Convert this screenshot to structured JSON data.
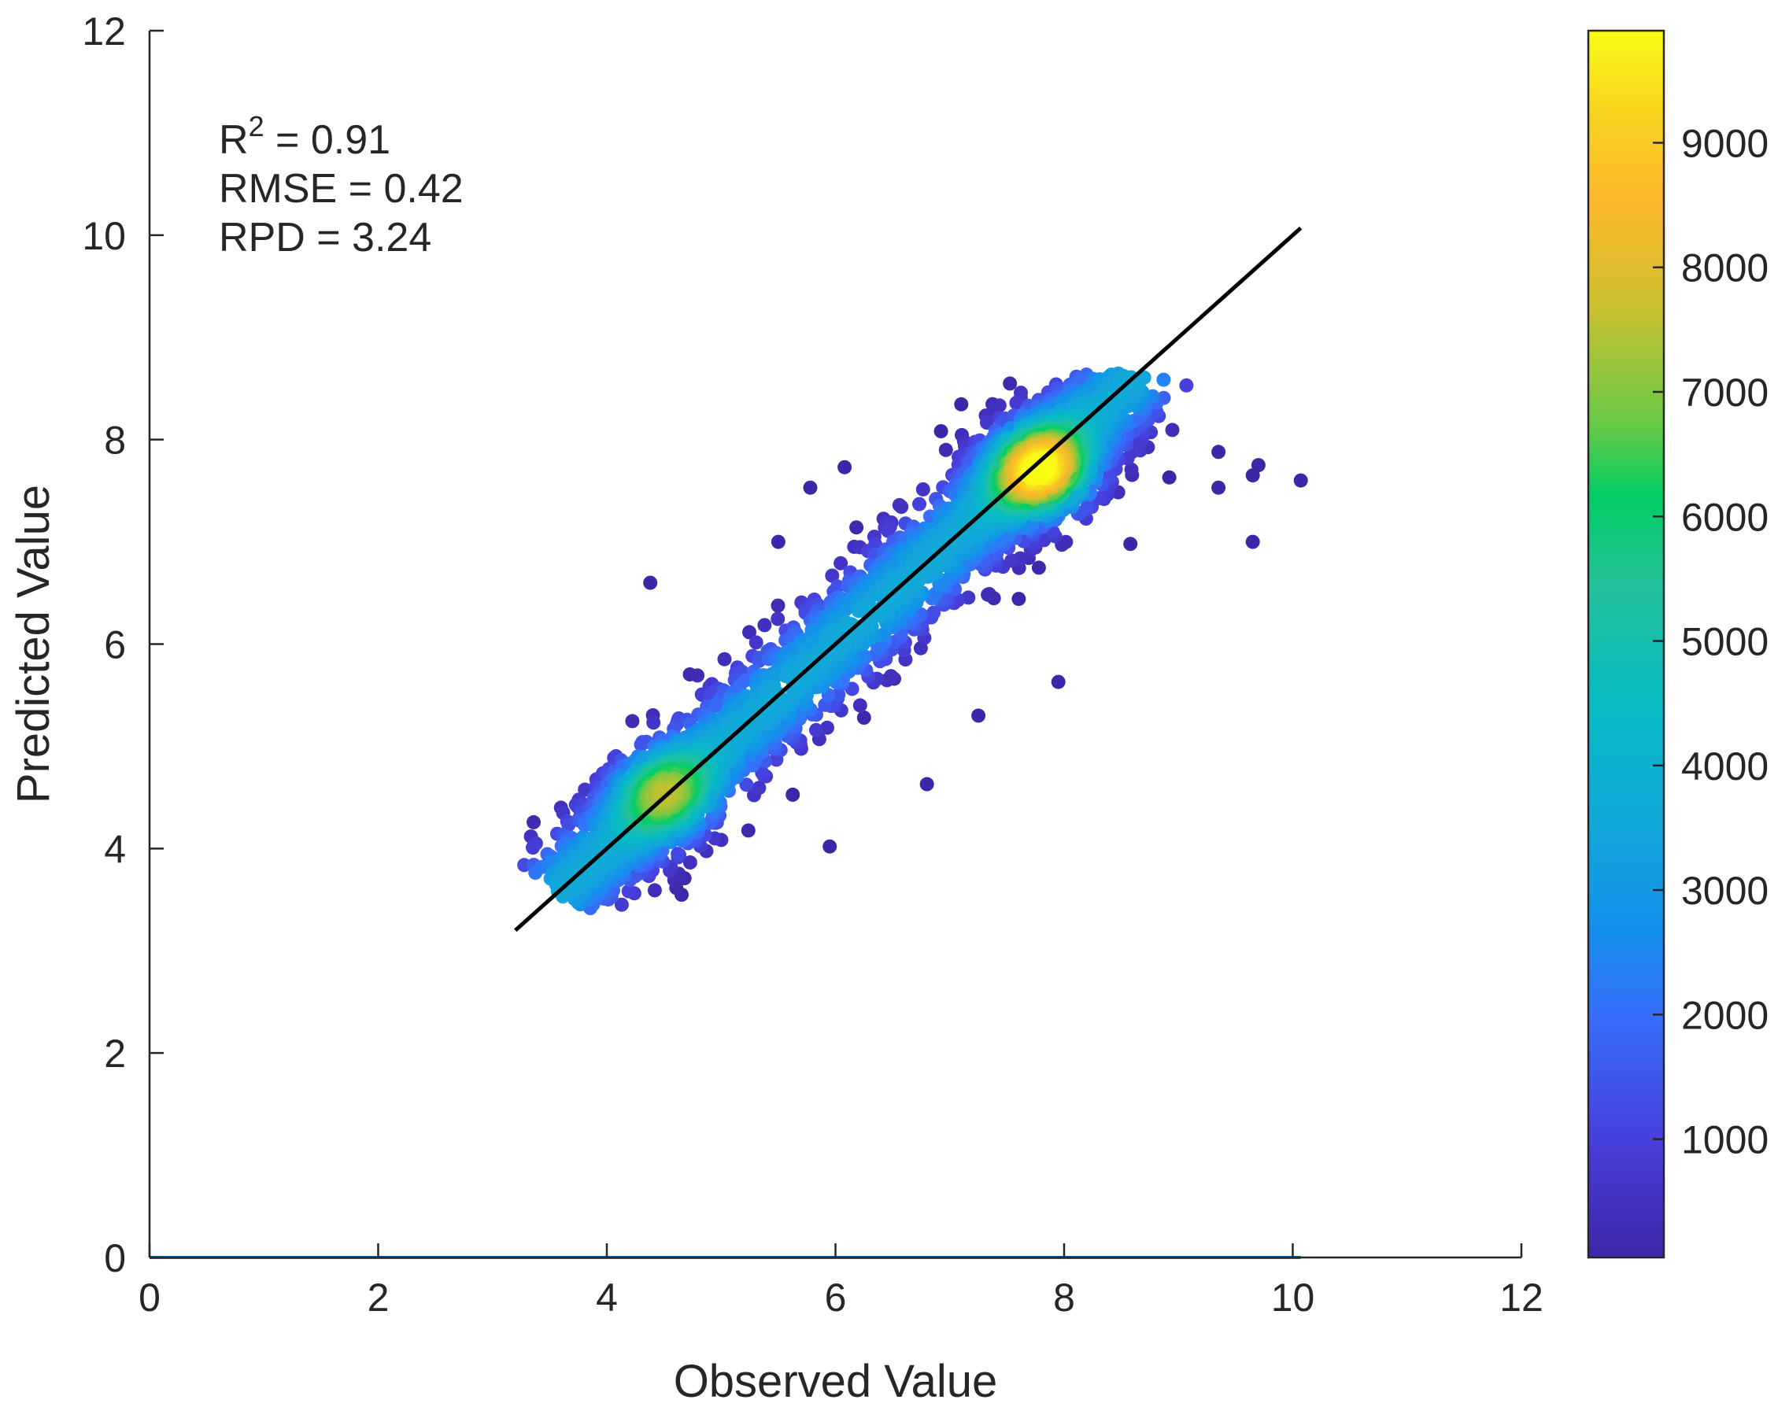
{
  "chart_data": {
    "type": "scatter",
    "subtype": "density-colored scatter with fit line",
    "title": "",
    "xlabel": "Observed Value",
    "ylabel": "Predicted Value",
    "xlim": [
      0,
      12
    ],
    "ylim": [
      0,
      12
    ],
    "x_ticks": [
      "0",
      "2",
      "4",
      "6",
      "8",
      "10",
      "12"
    ],
    "y_ticks": [
      "0",
      "2",
      "4",
      "6",
      "8",
      "10",
      "12"
    ],
    "grid": false,
    "stats": [
      {
        "label": "R",
        "sup": "2",
        "rest": " = 0.91"
      },
      {
        "text": "RMSE = 0.42"
      },
      {
        "text": "RPD = 3.24"
      }
    ],
    "fit_line": {
      "x": [
        3.2,
        10.07
      ],
      "y": [
        3.2,
        10.07
      ],
      "color": "#000000"
    },
    "baseline": {
      "x": [
        0,
        10.07
      ],
      "y": [
        0,
        0
      ],
      "color": "#0072BD"
    },
    "density_clusters": [
      {
        "cx": 7.8,
        "cy": 7.7,
        "density": 9800
      },
      {
        "cx": 4.5,
        "cy": 4.55,
        "density": 7000
      }
    ],
    "outliers": [
      [
        9.07,
        8.53
      ],
      [
        9.35,
        7.88
      ],
      [
        9.35,
        7.53
      ],
      [
        9.7,
        7.75
      ],
      [
        9.65,
        7.65
      ],
      [
        10.07,
        7.6
      ],
      [
        9.65,
        7.0
      ],
      [
        7.95,
        5.63
      ],
      [
        5.95,
        4.02
      ],
      [
        4.38,
        6.6
      ],
      [
        5.5,
        7.0
      ],
      [
        5.78,
        7.53
      ],
      [
        6.08,
        7.73
      ],
      [
        6.8,
        4.63
      ],
      [
        6.25,
        5.28
      ],
      [
        7.25,
        5.3
      ],
      [
        3.75,
        3.47
      ],
      [
        3.38,
        4.05
      ],
      [
        8.58,
        6.98
      ],
      [
        8.92,
        7.63
      ]
    ],
    "colorbar": {
      "ticks": [
        "1000",
        "2000",
        "3000",
        "4000",
        "5000",
        "6000",
        "7000",
        "8000",
        "9000"
      ],
      "min": 50,
      "max": 9900,
      "colormap": "parula"
    }
  }
}
